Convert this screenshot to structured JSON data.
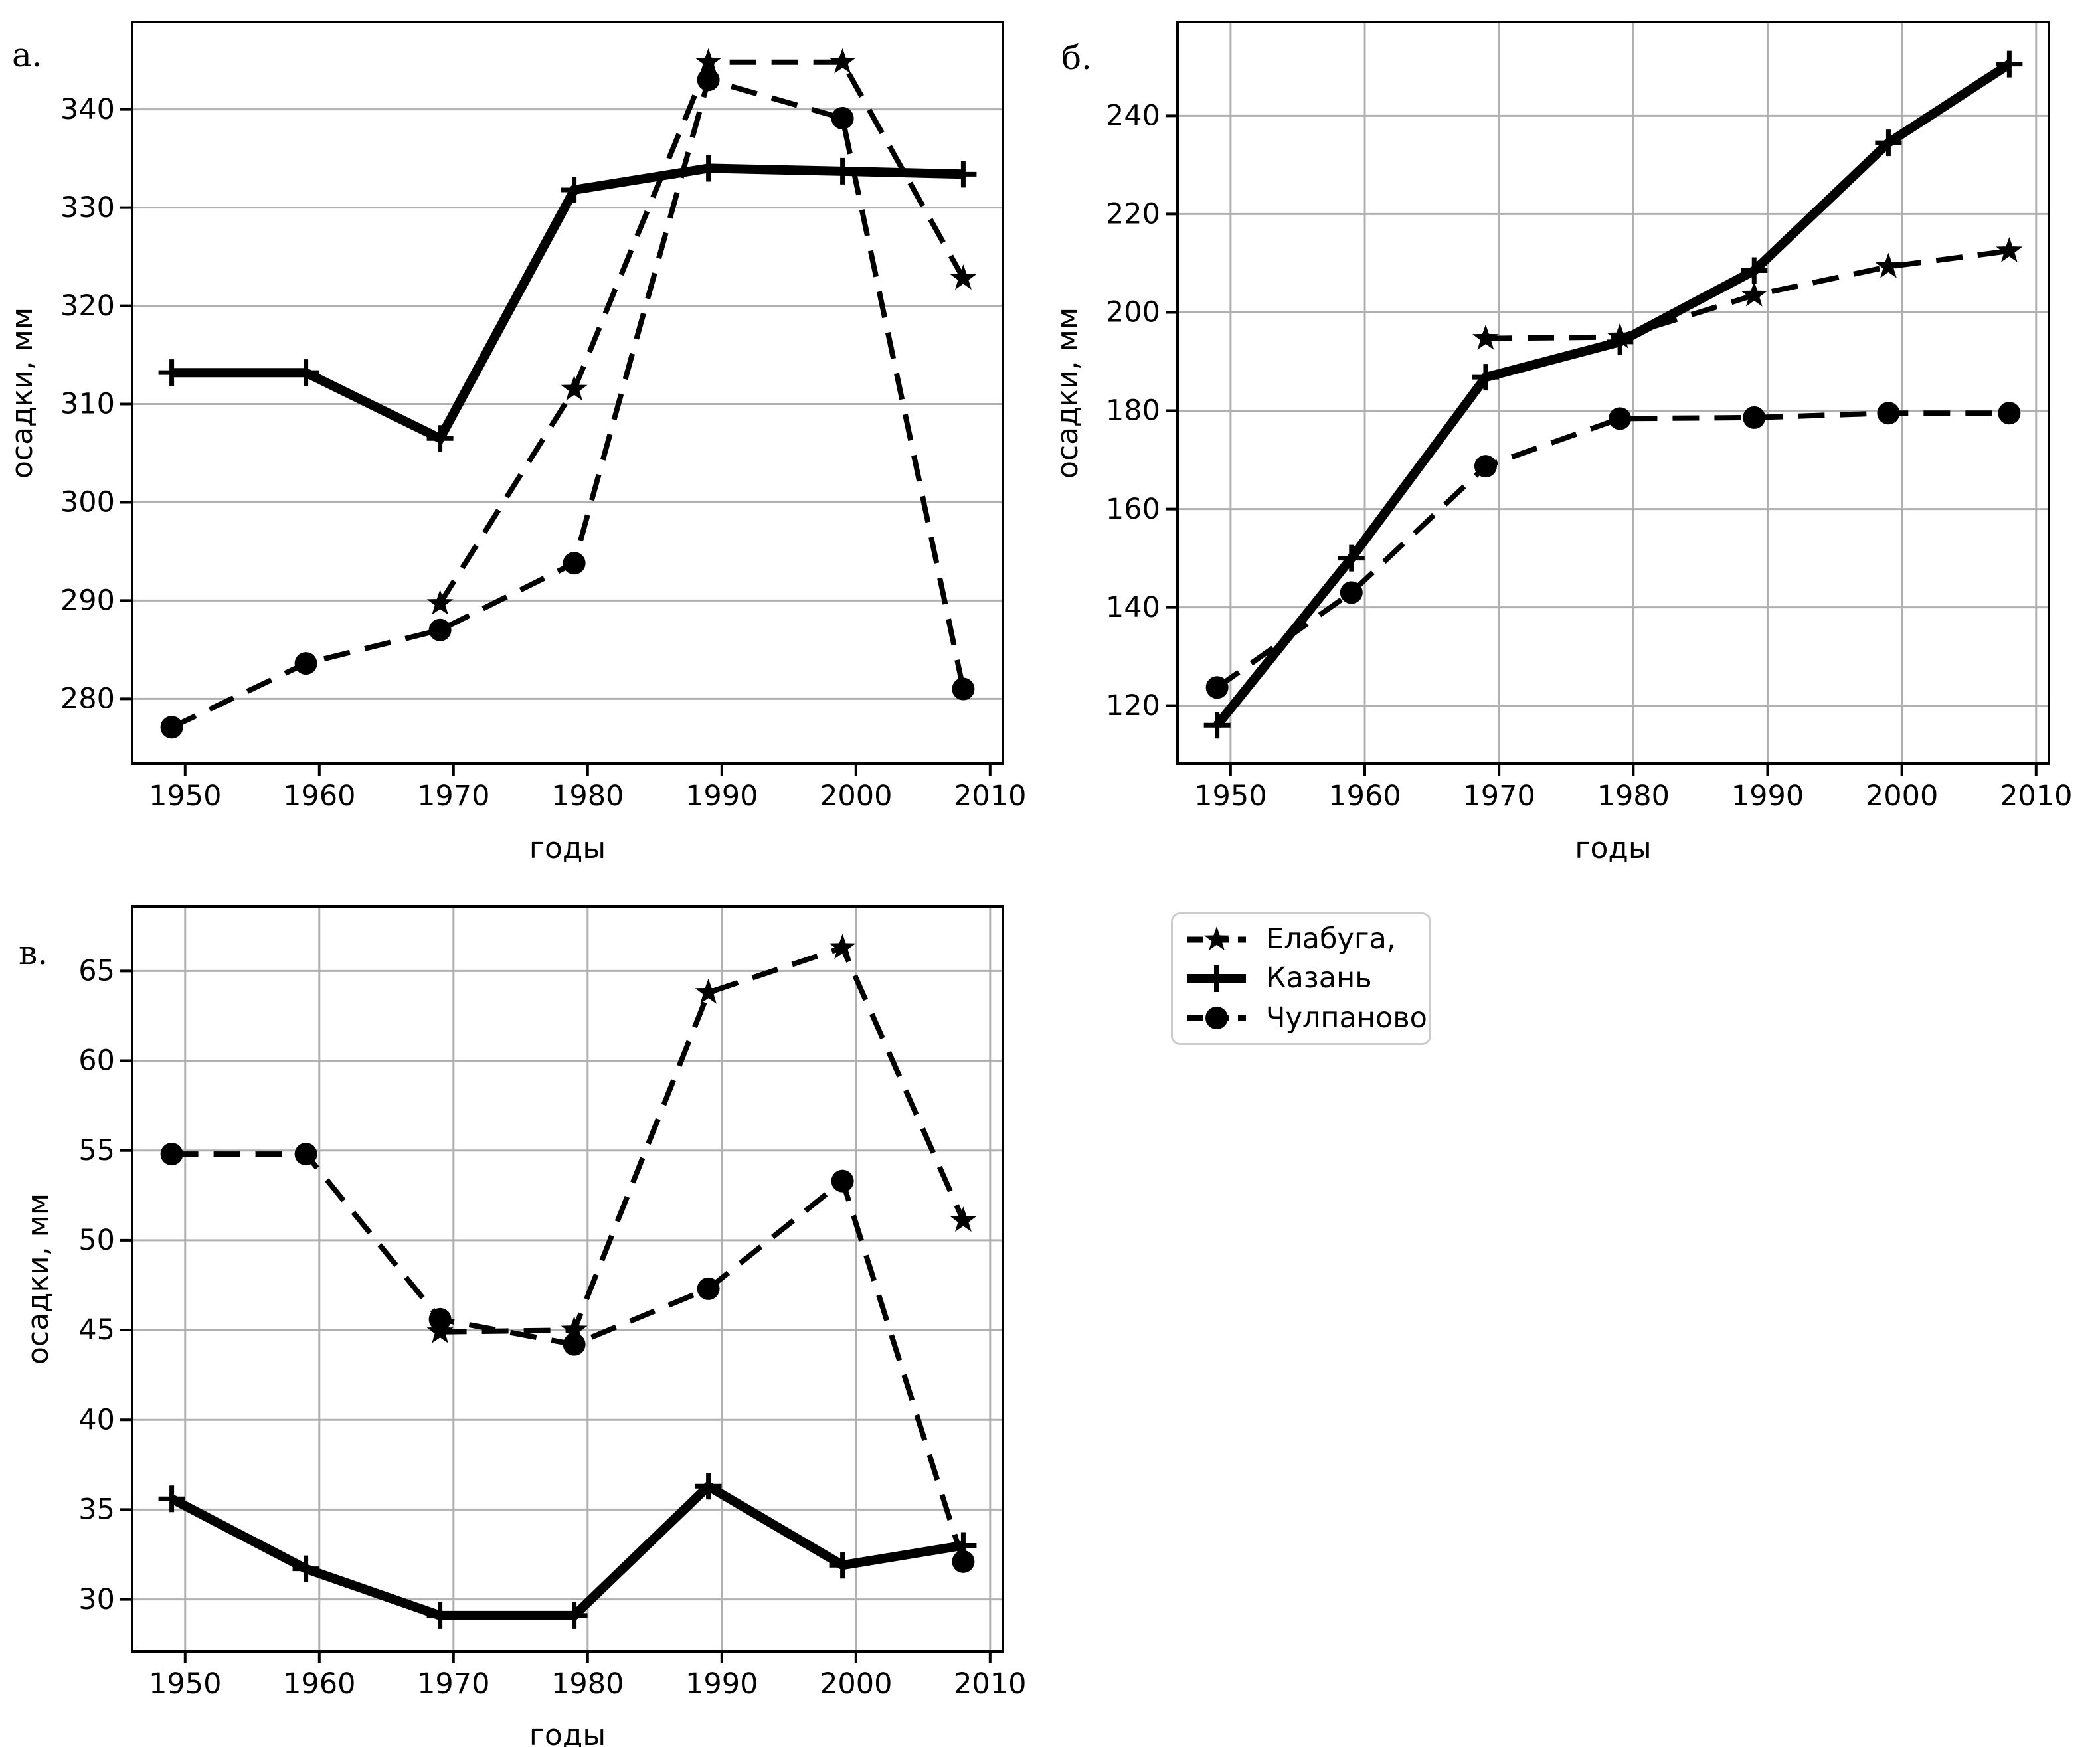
{
  "colors": {
    "line": "#000000",
    "grid": "#b0b0b0",
    "legend_border": "#cccccc",
    "background": "#ffffff"
  },
  "legend": {
    "position": "right-of-panel-v-top",
    "items": [
      {
        "label": "Елабуга,",
        "marker": "star",
        "line_style": "dashed"
      },
      {
        "label": "Казань",
        "marker": "plus",
        "line_style": "solid"
      },
      {
        "label": "Чулпаново",
        "marker": "circle",
        "line_style": "dashed"
      }
    ]
  },
  "chart_data": [
    {
      "type": "line",
      "panel_label": "а.",
      "xlabel": "годы",
      "ylabel": "осадки, мм",
      "x": [
        1949,
        1959,
        1969,
        1979,
        1989,
        1999,
        2008
      ],
      "xticks": [
        1950,
        1960,
        1970,
        1980,
        1990,
        2000,
        2010
      ],
      "xlim": [
        1946.05,
        2010.95
      ],
      "ylim": [
        273.4,
        348.9
      ],
      "yticks": [
        280,
        290,
        300,
        310,
        320,
        330,
        340
      ],
      "grid": "horizontal",
      "series": [
        {
          "name": "Елабуга,",
          "marker": "star",
          "line_style": "dashed",
          "values": [
            null,
            null,
            289.7,
            311.5,
            344.8,
            344.8,
            322.8
          ]
        },
        {
          "name": "Казань",
          "marker": "plus",
          "line_style": "solid",
          "values": [
            313.2,
            313.2,
            306.5,
            331.8,
            334.0,
            333.7,
            333.4
          ]
        },
        {
          "name": "Чулпаново",
          "marker": "circle",
          "line_style": "dashed",
          "values": [
            277.1,
            283.6,
            287.0,
            293.8,
            343.0,
            339.1,
            281.0
          ]
        }
      ]
    },
    {
      "type": "line",
      "panel_label": "б.",
      "xlabel": "годы",
      "ylabel": "осадки, мм",
      "x": [
        1949,
        1959,
        1969,
        1979,
        1989,
        1999,
        2008
      ],
      "xticks": [
        1950,
        1960,
        1970,
        1980,
        1990,
        2000,
        2010
      ],
      "xlim": [
        1946.05,
        2010.95
      ],
      "ylim": [
        108.2,
        259.1
      ],
      "yticks": [
        120,
        140,
        160,
        180,
        200,
        220,
        240
      ],
      "grid": "both",
      "series": [
        {
          "name": "Елабуга,",
          "marker": "star",
          "line_style": "dashed",
          "values": [
            null,
            null,
            194.7,
            195.0,
            203.5,
            209.3,
            212.5
          ]
        },
        {
          "name": "Казань",
          "marker": "plus",
          "line_style": "solid",
          "values": [
            116.0,
            150.0,
            186.8,
            194.0,
            208.5,
            234.5,
            250.5
          ]
        },
        {
          "name": "Чулпаново",
          "marker": "circle",
          "line_style": "dashed",
          "values": [
            123.7,
            143.0,
            168.7,
            178.4,
            178.6,
            179.5,
            179.5
          ]
        }
      ]
    },
    {
      "type": "line",
      "panel_label": "в.",
      "xlabel": "годы",
      "ylabel": "осадки, мм",
      "x": [
        1949,
        1959,
        1969,
        1979,
        1989,
        1999,
        2008
      ],
      "xticks": [
        1950,
        1960,
        1970,
        1980,
        1990,
        2000,
        2010
      ],
      "xlim": [
        1946.05,
        2010.95
      ],
      "ylim": [
        27.1,
        68.6
      ],
      "yticks": [
        30,
        35,
        40,
        45,
        50,
        55,
        60,
        65
      ],
      "grid": "both",
      "series": [
        {
          "name": "Елабуга,",
          "marker": "star",
          "line_style": "dashed",
          "values": [
            null,
            null,
            44.9,
            45.0,
            63.8,
            66.3,
            51.1
          ]
        },
        {
          "name": "Казань",
          "marker": "plus",
          "line_style": "solid",
          "values": [
            35.6,
            31.7,
            29.1,
            29.1,
            36.3,
            31.9,
            33.0
          ]
        },
        {
          "name": "Чулпаново",
          "marker": "circle",
          "line_style": "dashed",
          "values": [
            54.8,
            54.8,
            45.6,
            44.2,
            47.3,
            53.3,
            32.1
          ]
        }
      ]
    }
  ]
}
